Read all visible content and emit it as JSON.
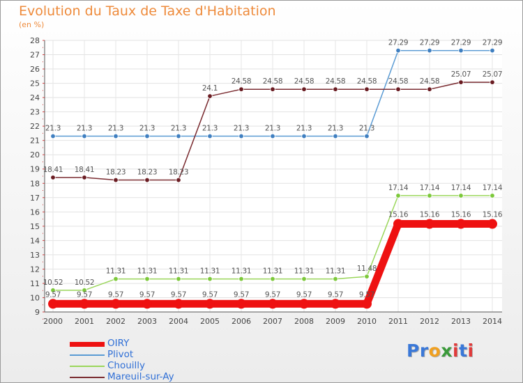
{
  "title": "Evolution du Taux de Taxe d'Habitation",
  "subtitle": "(en %)",
  "chart_data": {
    "type": "line",
    "title": "Evolution du Taux de Taxe d'Habitation",
    "subtitle": "(en %)",
    "xlabel": "",
    "ylabel": "",
    "ylim": [
      9,
      28
    ],
    "yticks": [
      "9",
      "10",
      "11",
      "12",
      "13",
      "14",
      "15",
      "16",
      "17",
      "18",
      "19",
      "20",
      "21",
      "22",
      "23",
      "24",
      "25",
      "26",
      "27",
      "28"
    ],
    "categories": [
      "2000",
      "2001",
      "2002",
      "2003",
      "2004",
      "2005",
      "2006",
      "2007",
      "2008",
      "2009",
      "2010",
      "2011",
      "2012",
      "2013",
      "2014"
    ],
    "grid": true,
    "legend_position": "bottom-left",
    "series": [
      {
        "name": "OIRY",
        "color": "#ee1111",
        "thick": true,
        "values": [
          9.57,
          9.57,
          9.57,
          9.57,
          9.57,
          9.57,
          9.57,
          9.57,
          9.57,
          9.57,
          9.57,
          15.16,
          15.16,
          15.16,
          15.16
        ],
        "labels": [
          "9.57",
          "9.57",
          "9.57",
          "9.57",
          "9.57",
          "9.57",
          "9.57",
          "9.57",
          "9.57",
          "9.57",
          "9.57",
          "15.16",
          "15.16",
          "15.16",
          "15.16"
        ]
      },
      {
        "name": "Plivot",
        "color": "#5a9bd4",
        "dot_color": "#3f7fc0",
        "values": [
          21.3,
          21.3,
          21.3,
          21.3,
          21.3,
          21.3,
          21.3,
          21.3,
          21.3,
          21.3,
          21.3,
          27.29,
          27.29,
          27.29,
          27.29
        ],
        "labels": [
          "21.3",
          "21.3",
          "21.3",
          "21.3",
          "21.3",
          "21.3",
          "21.3",
          "21.3",
          "21.3",
          "21.3",
          "21.3",
          "27.29",
          "27.29",
          "27.29",
          "27.29"
        ]
      },
      {
        "name": "Chouilly",
        "color": "#9ad65a",
        "dot_color": "#7cc83a",
        "values": [
          10.52,
          10.52,
          11.31,
          11.31,
          11.31,
          11.31,
          11.31,
          11.31,
          11.31,
          11.31,
          11.48,
          17.14,
          17.14,
          17.14,
          17.14
        ],
        "labels": [
          "10.52",
          "10.52",
          "11.31",
          "11.31",
          "11.31",
          "11.31",
          "11.31",
          "11.31",
          "11.31",
          "11.31",
          "11.48",
          "17.14",
          "17.14",
          "17.14",
          "17.14"
        ]
      },
      {
        "name": "Mareuil-sur-Ay",
        "color": "#7a2b30",
        "dot_color": "#6a1c22",
        "values": [
          18.41,
          18.41,
          18.23,
          18.23,
          18.23,
          24.1,
          24.58,
          24.58,
          24.58,
          24.58,
          24.58,
          24.58,
          24.58,
          25.07,
          25.07
        ],
        "labels": [
          "18.41",
          "18.41",
          "18.23",
          "18.23",
          "18.23",
          "24.1",
          "24.58",
          "24.58",
          "24.58",
          "24.58",
          "24.58",
          "24.58",
          "24.58",
          "25.07",
          "25.07"
        ]
      }
    ]
  },
  "logo": {
    "text": "Proxiti",
    "letter_colors": [
      "#3a78d8",
      "#3a78d8",
      "#f0a020",
      "#3a9a3a",
      "#e03a3a",
      "#3a78d8",
      "#e03a3a"
    ]
  }
}
